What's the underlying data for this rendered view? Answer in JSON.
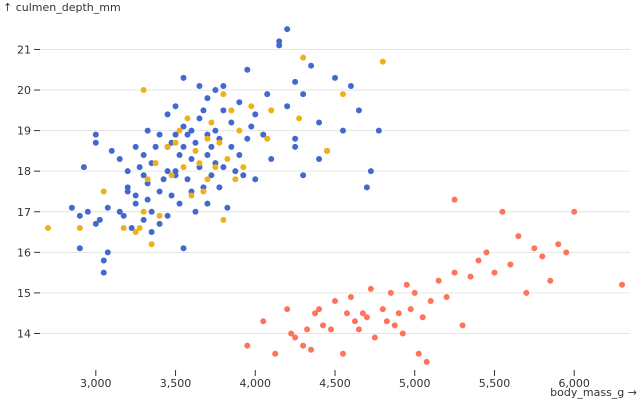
{
  "chart_data": {
    "type": "scatter",
    "title": "",
    "xlabel": "body_mass_g →",
    "ylabel": "↑ culmen_depth_mm",
    "xlim": [
      2650,
      6350
    ],
    "ylim": [
      13.1,
      21.8
    ],
    "x_ticks": [
      3000,
      3500,
      4000,
      4500,
      5000,
      5500,
      6000
    ],
    "x_tick_labels": [
      "3,000",
      "3,500",
      "4,000",
      "4,500",
      "5,000",
      "5,500",
      "6,000"
    ],
    "y_ticks": [
      14,
      15,
      16,
      17,
      18,
      19,
      20,
      21
    ],
    "y_tick_labels": [
      "14",
      "15",
      "16",
      "17",
      "18",
      "19",
      "20",
      "21"
    ],
    "grid": "horizontal",
    "legend": "none",
    "series": [
      {
        "color": "#4269d0",
        "points": [
          [
            2850,
            17.1
          ],
          [
            2900,
            16.9
          ],
          [
            2900,
            16.1
          ],
          [
            2925,
            18.1
          ],
          [
            2950,
            17.0
          ],
          [
            3000,
            18.7
          ],
          [
            3000,
            18.9
          ],
          [
            3000,
            16.7
          ],
          [
            3025,
            16.8
          ],
          [
            3050,
            15.5
          ],
          [
            3050,
            15.8
          ],
          [
            3075,
            16.0
          ],
          [
            3075,
            17.1
          ],
          [
            3100,
            18.5
          ],
          [
            3150,
            17.0
          ],
          [
            3150,
            18.3
          ],
          [
            3175,
            16.9
          ],
          [
            3200,
            17.5
          ],
          [
            3200,
            18.0
          ],
          [
            3200,
            17.6
          ],
          [
            3225,
            16.6
          ],
          [
            3250,
            17.2
          ],
          [
            3250,
            17.4
          ],
          [
            3250,
            18.6
          ],
          [
            3275,
            18.1
          ],
          [
            3300,
            16.8
          ],
          [
            3300,
            17.9
          ],
          [
            3300,
            18.4
          ],
          [
            3325,
            17.7
          ],
          [
            3325,
            17.3
          ],
          [
            3325,
            19.0
          ],
          [
            3350,
            18.2
          ],
          [
            3350,
            17.0
          ],
          [
            3350,
            16.5
          ],
          [
            3375,
            18.6
          ],
          [
            3400,
            16.7
          ],
          [
            3400,
            18.9
          ],
          [
            3400,
            17.5
          ],
          [
            3425,
            17.8
          ],
          [
            3450,
            18.0
          ],
          [
            3450,
            16.9
          ],
          [
            3450,
            19.4
          ],
          [
            3450,
            18.6
          ],
          [
            3475,
            17.4
          ],
          [
            3475,
            18.7
          ],
          [
            3500,
            18.0
          ],
          [
            3500,
            18.9
          ],
          [
            3500,
            19.6
          ],
          [
            3500,
            17.9
          ],
          [
            3525,
            17.2
          ],
          [
            3525,
            18.4
          ],
          [
            3550,
            19.1
          ],
          [
            3550,
            18.6
          ],
          [
            3550,
            16.1
          ],
          [
            3550,
            20.3
          ],
          [
            3575,
            17.8
          ],
          [
            3575,
            18.9
          ],
          [
            3600,
            18.3
          ],
          [
            3600,
            19.0
          ],
          [
            3600,
            17.5
          ],
          [
            3625,
            18.7
          ],
          [
            3625,
            17.0
          ],
          [
            3650,
            19.3
          ],
          [
            3650,
            18.1
          ],
          [
            3650,
            20.1
          ],
          [
            3675,
            17.6
          ],
          [
            3675,
            19.5
          ],
          [
            3700,
            18.4
          ],
          [
            3700,
            18.9
          ],
          [
            3700,
            17.2
          ],
          [
            3700,
            19.8
          ],
          [
            3725,
            18.6
          ],
          [
            3725,
            17.9
          ],
          [
            3750,
            19.0
          ],
          [
            3750,
            18.2
          ],
          [
            3750,
            20.0
          ],
          [
            3775,
            18.8
          ],
          [
            3775,
            17.6
          ],
          [
            3800,
            19.5
          ],
          [
            3800,
            18.1
          ],
          [
            3800,
            20.1
          ],
          [
            3825,
            17.1
          ],
          [
            3850,
            18.6
          ],
          [
            3850,
            19.2
          ],
          [
            3875,
            18.0
          ],
          [
            3900,
            19.7
          ],
          [
            3900,
            18.4
          ],
          [
            3925,
            17.9
          ],
          [
            3950,
            20.5
          ],
          [
            3950,
            18.8
          ],
          [
            3975,
            19.1
          ],
          [
            4000,
            17.8
          ],
          [
            4000,
            19.4
          ],
          [
            4050,
            18.9
          ],
          [
            4075,
            19.9
          ],
          [
            4100,
            18.3
          ],
          [
            4150,
            21.1
          ],
          [
            4150,
            21.2
          ],
          [
            4200,
            21.5
          ],
          [
            4200,
            19.6
          ],
          [
            4250,
            18.6
          ],
          [
            4250,
            20.2
          ],
          [
            4250,
            18.8
          ],
          [
            4300,
            19.9
          ],
          [
            4300,
            17.9
          ],
          [
            4350,
            20.6
          ],
          [
            4400,
            19.2
          ],
          [
            4400,
            18.3
          ],
          [
            4450,
            18.5
          ],
          [
            4500,
            20.3
          ],
          [
            4550,
            19.0
          ],
          [
            4600,
            20.1
          ],
          [
            4650,
            19.5
          ],
          [
            4700,
            17.6
          ],
          [
            4725,
            18.0
          ],
          [
            4775,
            19.0
          ]
        ]
      },
      {
        "color": "#efb118",
        "points": [
          [
            2700,
            16.6
          ],
          [
            2900,
            16.6
          ],
          [
            3050,
            17.5
          ],
          [
            3175,
            16.6
          ],
          [
            3250,
            16.5
          ],
          [
            3275,
            16.6
          ],
          [
            3300,
            20.0
          ],
          [
            3300,
            17.0
          ],
          [
            3325,
            17.8
          ],
          [
            3350,
            16.2
          ],
          [
            3375,
            18.2
          ],
          [
            3400,
            16.9
          ],
          [
            3450,
            18.6
          ],
          [
            3475,
            17.9
          ],
          [
            3500,
            18.7
          ],
          [
            3525,
            19.0
          ],
          [
            3550,
            18.1
          ],
          [
            3575,
            19.3
          ],
          [
            3600,
            17.4
          ],
          [
            3625,
            18.5
          ],
          [
            3650,
            18.2
          ],
          [
            3675,
            17.5
          ],
          [
            3700,
            18.8
          ],
          [
            3700,
            17.8
          ],
          [
            3725,
            19.2
          ],
          [
            3750,
            18.1
          ],
          [
            3775,
            18.7
          ],
          [
            3800,
            16.8
          ],
          [
            3800,
            19.9
          ],
          [
            3825,
            18.3
          ],
          [
            3850,
            19.5
          ],
          [
            3875,
            17.8
          ],
          [
            3900,
            19.0
          ],
          [
            3925,
            18.1
          ],
          [
            3975,
            19.6
          ],
          [
            4075,
            18.8
          ],
          [
            4100,
            19.5
          ],
          [
            4275,
            19.3
          ],
          [
            4300,
            20.8
          ],
          [
            4450,
            18.5
          ],
          [
            4550,
            19.9
          ],
          [
            4800,
            20.7
          ]
        ]
      },
      {
        "color": "#ff725c",
        "points": [
          [
            3950,
            13.7
          ],
          [
            4050,
            14.3
          ],
          [
            4125,
            13.5
          ],
          [
            4200,
            14.6
          ],
          [
            4225,
            14.0
          ],
          [
            4250,
            13.9
          ],
          [
            4300,
            13.7
          ],
          [
            4325,
            14.1
          ],
          [
            4350,
            13.6
          ],
          [
            4375,
            14.5
          ],
          [
            4400,
            14.6
          ],
          [
            4425,
            14.2
          ],
          [
            4475,
            14.1
          ],
          [
            4500,
            14.8
          ],
          [
            4550,
            13.5
          ],
          [
            4575,
            14.5
          ],
          [
            4600,
            14.9
          ],
          [
            4625,
            14.3
          ],
          [
            4650,
            14.1
          ],
          [
            4675,
            14.5
          ],
          [
            4700,
            14.4
          ],
          [
            4725,
            15.1
          ],
          [
            4750,
            13.9
          ],
          [
            4800,
            14.6
          ],
          [
            4825,
            14.3
          ],
          [
            4850,
            15.0
          ],
          [
            4875,
            14.2
          ],
          [
            4900,
            14.5
          ],
          [
            4925,
            14.0
          ],
          [
            4950,
            15.2
          ],
          [
            4975,
            14.6
          ],
          [
            5000,
            15.0
          ],
          [
            5025,
            13.5
          ],
          [
            5050,
            14.4
          ],
          [
            5075,
            13.3
          ],
          [
            5100,
            14.8
          ],
          [
            5150,
            15.3
          ],
          [
            5200,
            14.9
          ],
          [
            5250,
            15.5
          ],
          [
            5250,
            17.3
          ],
          [
            5300,
            14.2
          ],
          [
            5350,
            15.4
          ],
          [
            5400,
            15.8
          ],
          [
            5450,
            16.0
          ],
          [
            5500,
            15.5
          ],
          [
            5550,
            17.0
          ],
          [
            5600,
            15.7
          ],
          [
            5650,
            16.4
          ],
          [
            5700,
            15.0
          ],
          [
            5750,
            16.1
          ],
          [
            5800,
            15.9
          ],
          [
            5850,
            15.3
          ],
          [
            5900,
            16.2
          ],
          [
            5950,
            16.0
          ],
          [
            6000,
            17.0
          ],
          [
            6300,
            15.2
          ]
        ]
      }
    ]
  }
}
